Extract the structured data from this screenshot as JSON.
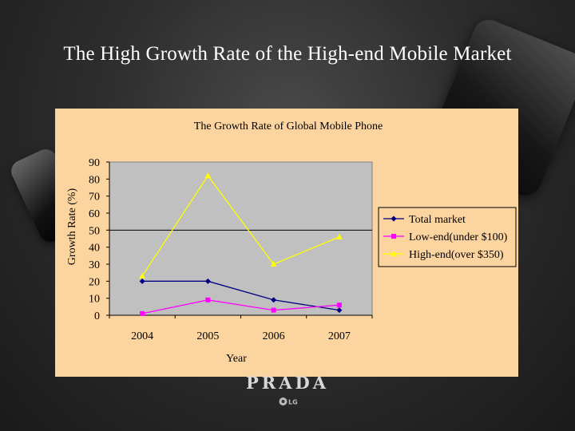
{
  "slide": {
    "title": "The  High Growth Rate of the High-end Mobile Market",
    "brand": "PRADA",
    "logo_text": "LG",
    "colors": {
      "panel": "#fcd4a0",
      "plot_area": "#c0c0c0"
    }
  },
  "chart_data": {
    "type": "line",
    "title": "The Growth Rate of Global Mobile Phone",
    "xlabel": "Year",
    "ylabel": "Growth Rate (%)",
    "categories": [
      "2004",
      "2005",
      "2006",
      "2007"
    ],
    "ylim": [
      0,
      90
    ],
    "yticks": [
      0,
      10,
      20,
      30,
      40,
      50,
      60,
      70,
      80,
      90
    ],
    "grid": "single line at 50",
    "legend": "right",
    "series": [
      {
        "name": "Total market",
        "values": [
          20,
          20,
          9,
          3
        ],
        "color": "#000080",
        "marker": "diamond"
      },
      {
        "name": "Low-end(under $100)",
        "values": [
          1,
          9,
          3,
          6
        ],
        "color": "#ff00ff",
        "marker": "square"
      },
      {
        "name": "High-end(over $350)",
        "values": [
          23,
          82,
          30,
          46
        ],
        "color": "#ffff00",
        "marker": "triangle"
      }
    ]
  }
}
